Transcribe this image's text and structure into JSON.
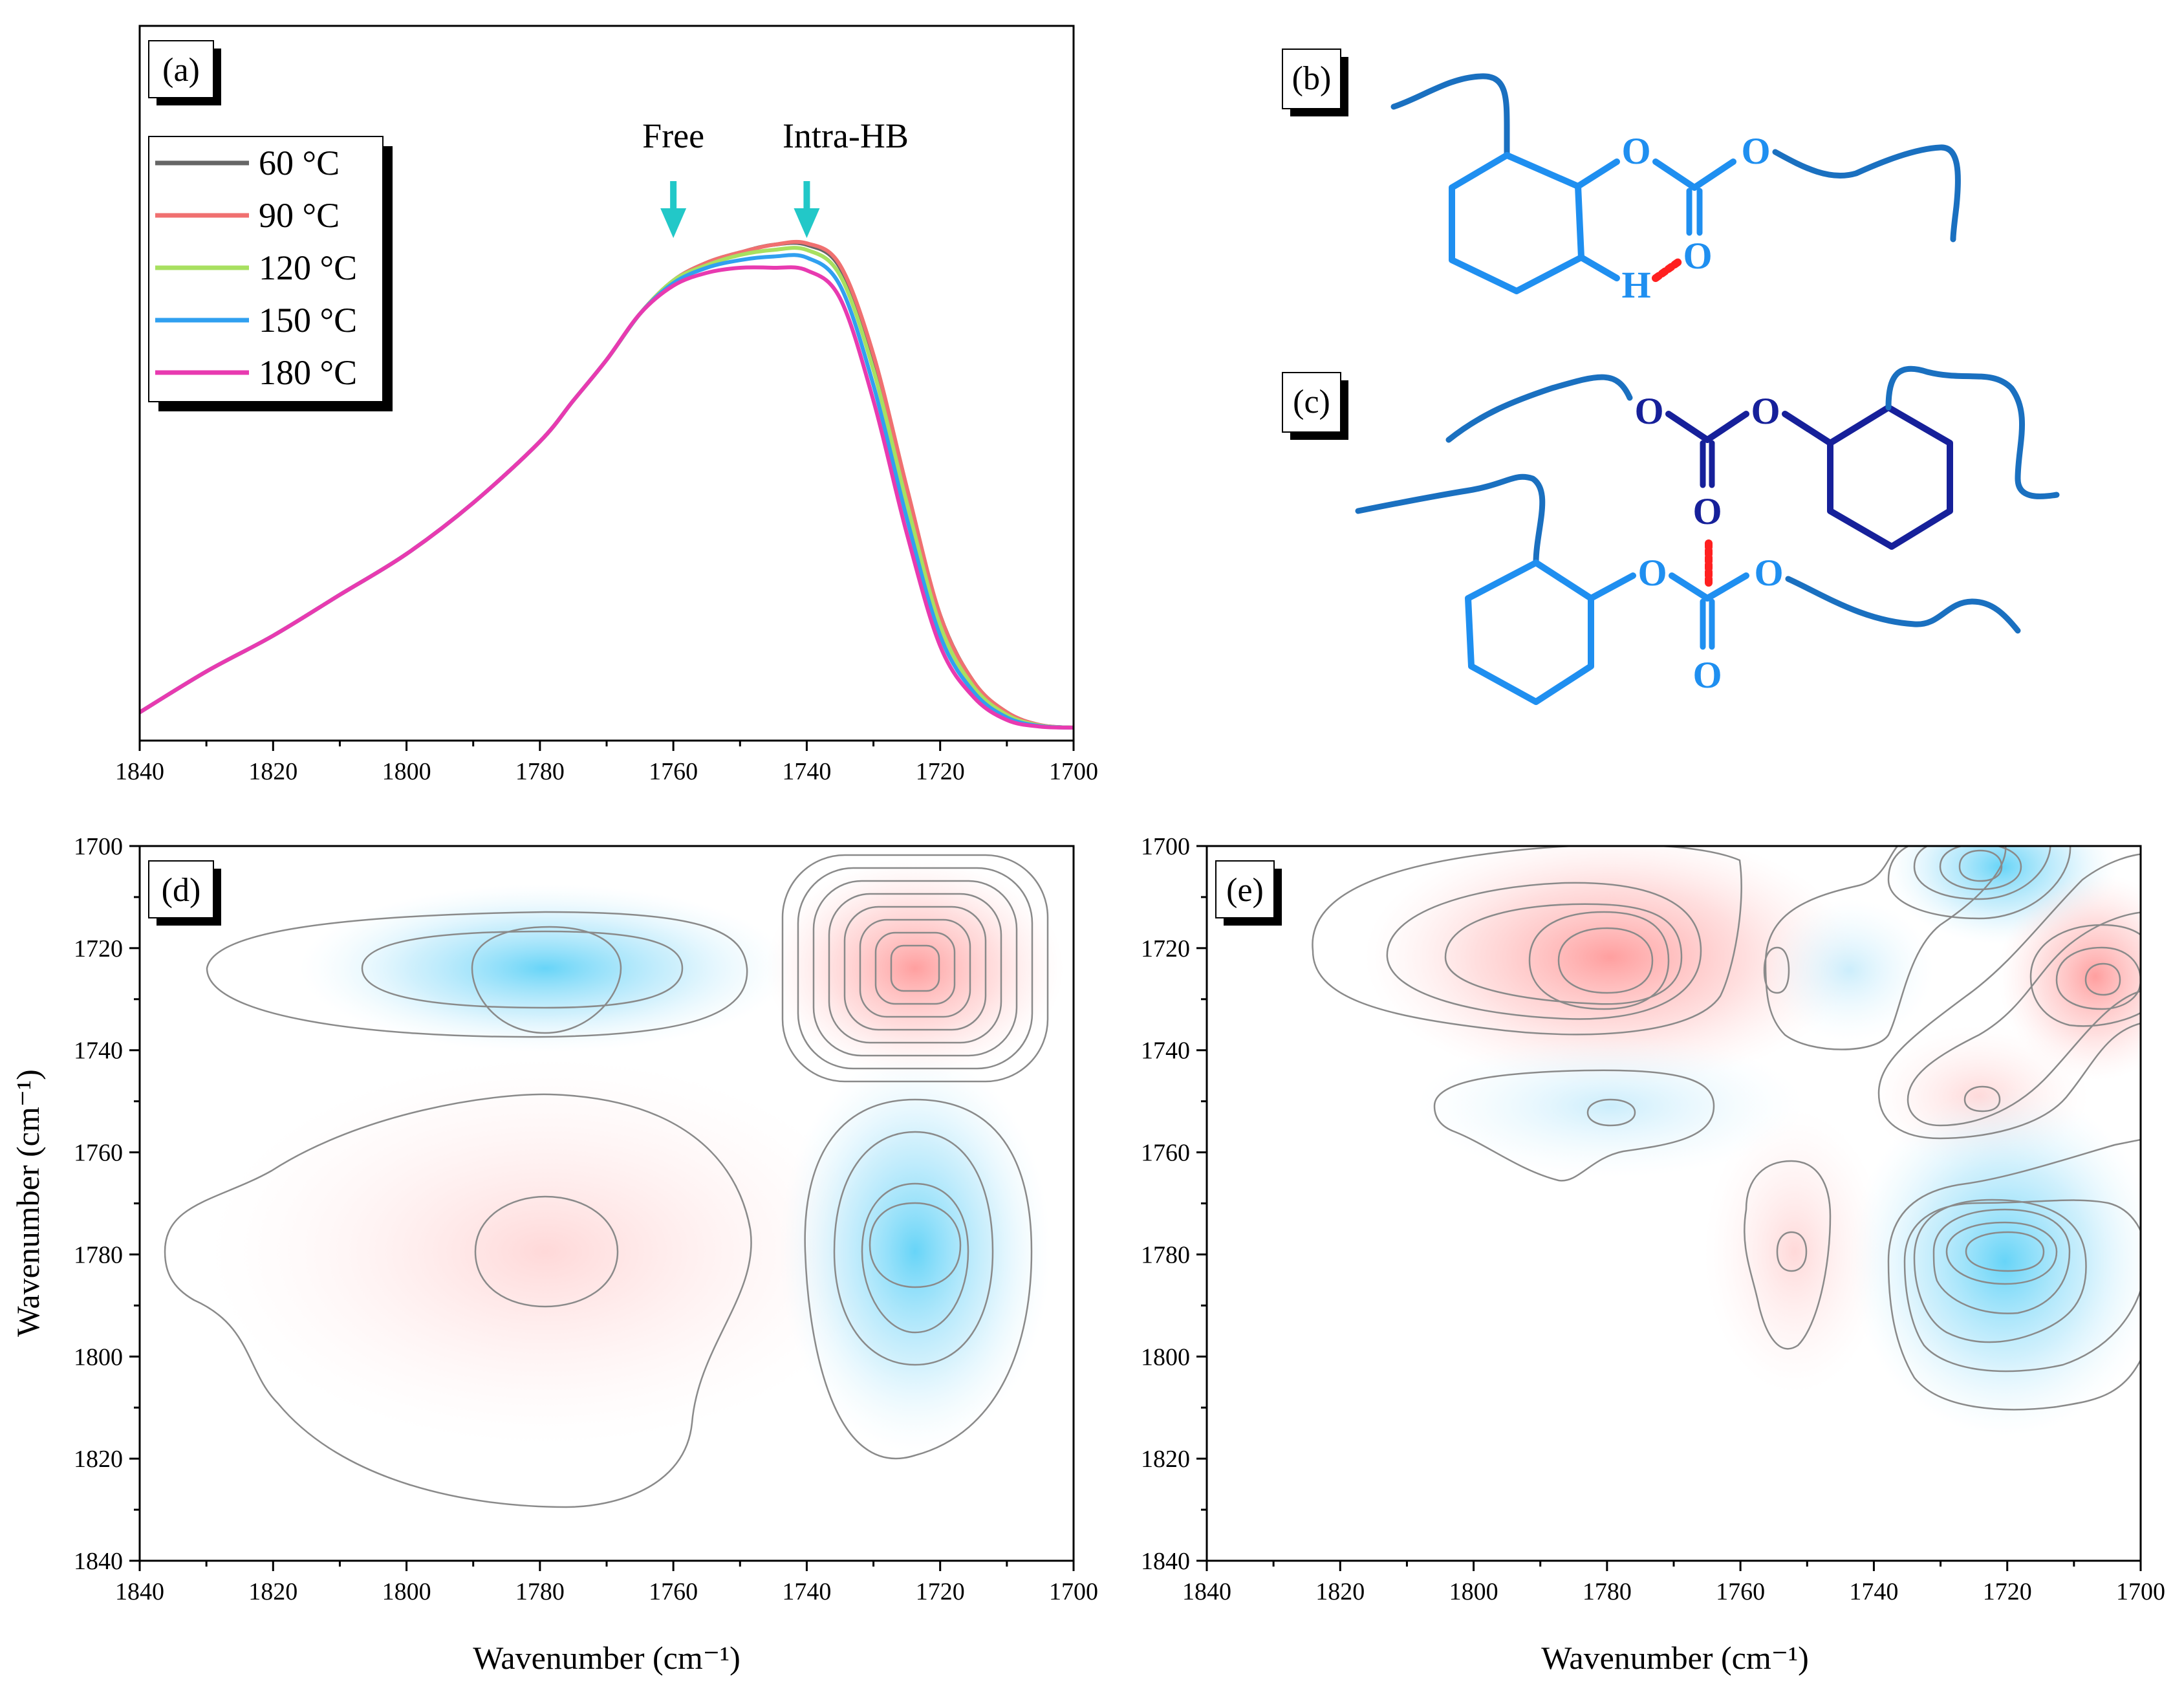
{
  "chart_data": [
    {
      "type": "line",
      "panel": "(a)",
      "xlabel": "",
      "ylabel": "",
      "xlim": [
        1840,
        1700
      ],
      "xticks": [
        1840,
        1820,
        1800,
        1780,
        1760,
        1740,
        1720,
        1700
      ],
      "x": [
        1840,
        1830,
        1820,
        1810,
        1800,
        1790,
        1780,
        1775,
        1770,
        1765,
        1760,
        1755,
        1750,
        1745,
        1740,
        1735,
        1730,
        1725,
        1720,
        1715,
        1710,
        1705,
        1700
      ],
      "series": [
        {
          "name": "60 °C",
          "color": "#666666",
          "values": [
            0.03,
            0.11,
            0.18,
            0.26,
            0.34,
            0.44,
            0.56,
            0.64,
            0.72,
            0.81,
            0.875,
            0.91,
            0.93,
            0.945,
            0.945,
            0.9,
            0.72,
            0.46,
            0.22,
            0.09,
            0.03,
            0.005,
            0.0
          ]
        },
        {
          "name": "90 °C",
          "color": "#f07070",
          "values": [
            0.03,
            0.11,
            0.18,
            0.26,
            0.34,
            0.44,
            0.56,
            0.64,
            0.72,
            0.81,
            0.875,
            0.91,
            0.93,
            0.945,
            0.948,
            0.905,
            0.73,
            0.47,
            0.22,
            0.09,
            0.03,
            0.005,
            0.0
          ]
        },
        {
          "name": "120 °C",
          "color": "#a8e060",
          "values": [
            0.03,
            0.11,
            0.18,
            0.26,
            0.34,
            0.44,
            0.56,
            0.64,
            0.72,
            0.81,
            0.875,
            0.905,
            0.925,
            0.935,
            0.935,
            0.885,
            0.7,
            0.44,
            0.2,
            0.08,
            0.025,
            0.004,
            0.0
          ]
        },
        {
          "name": "150 °C",
          "color": "#30a0f0",
          "values": [
            0.03,
            0.11,
            0.18,
            0.26,
            0.34,
            0.44,
            0.56,
            0.64,
            0.72,
            0.81,
            0.87,
            0.9,
            0.915,
            0.922,
            0.92,
            0.865,
            0.67,
            0.41,
            0.18,
            0.07,
            0.02,
            0.003,
            0.0
          ]
        },
        {
          "name": "180 °C",
          "color": "#e83ab0",
          "values": [
            0.03,
            0.11,
            0.18,
            0.26,
            0.34,
            0.44,
            0.56,
            0.64,
            0.72,
            0.81,
            0.865,
            0.89,
            0.9,
            0.9,
            0.895,
            0.84,
            0.64,
            0.38,
            0.16,
            0.06,
            0.015,
            0.002,
            0.0
          ]
        }
      ],
      "annotations": [
        {
          "text": "Free",
          "x": 1760,
          "arrow_color": "#22c8c8"
        },
        {
          "text": "Intra-HB",
          "x": 1740,
          "arrow_color": "#22c8c8"
        }
      ]
    },
    {
      "type": "heatmap",
      "panel": "(d)",
      "description_kind": "synchronous 2D correlation contour",
      "xlabel": "Wavenumber (cm⁻¹)",
      "ylabel": "Wavenumber (cm⁻¹)",
      "xlim": [
        1840,
        1700
      ],
      "ylim": [
        1700,
        1840
      ],
      "xticks": [
        1840,
        1820,
        1800,
        1780,
        1760,
        1740,
        1720,
        1700
      ],
      "yticks": [
        1700,
        1720,
        1740,
        1760,
        1780,
        1800,
        1820,
        1840
      ],
      "peaks": [
        {
          "x": 1779,
          "y": 1724,
          "sign": "negative"
        },
        {
          "x": 1724,
          "y": 1724,
          "sign": "positive"
        },
        {
          "x": 1779,
          "y": 1779,
          "sign": "positive"
        },
        {
          "x": 1724,
          "y": 1779,
          "sign": "negative"
        }
      ]
    },
    {
      "type": "heatmap",
      "panel": "(e)",
      "description_kind": "asynchronous 2D correlation contour",
      "xlabel": "Wavenumber (cm⁻¹)",
      "ylabel": "Wavenumber (cm⁻¹)",
      "xlim": [
        1840,
        1700
      ],
      "ylim": [
        1700,
        1840
      ],
      "xticks": [
        1840,
        1820,
        1800,
        1780,
        1760,
        1740,
        1720,
        1700
      ],
      "yticks": [
        1700,
        1720,
        1740,
        1760,
        1780,
        1800,
        1820,
        1840
      ],
      "peaks": [
        {
          "x": 1779,
          "y": 1720,
          "sign": "positive"
        },
        {
          "x": 1724,
          "y": 1705,
          "sign": "negative"
        },
        {
          "x": 1750,
          "y": 1725,
          "sign": "negative"
        },
        {
          "x": 1706,
          "y": 1725,
          "sign": "positive"
        },
        {
          "x": 1726,
          "y": 1750,
          "sign": "positive"
        },
        {
          "x": 1779,
          "y": 1752,
          "sign": "negative"
        },
        {
          "x": 1752,
          "y": 1779,
          "sign": "positive"
        },
        {
          "x": 1720,
          "y": 1780,
          "sign": "negative"
        }
      ]
    }
  ],
  "panels": {
    "a": "(a)",
    "b": "(b)",
    "c": "(c)",
    "d": "(d)",
    "e": "(e)"
  },
  "axis_titles": {
    "d_x": "Wavenumber (cm⁻¹)",
    "d_y": "Wavenumber (cm⁻¹)",
    "e_x": "Wavenumber (cm⁻¹)"
  },
  "structures": {
    "b_atoms": {
      "o1": "O",
      "o2": "O",
      "o3": "O",
      "h": "H"
    },
    "c_atoms": {
      "o1": "O",
      "o2": "O",
      "o3": "O",
      "o4": "O",
      "o5": "O",
      "o6": "O"
    }
  },
  "colors": {
    "positive": "#ff9a9a",
    "negative": "#4cc8f5",
    "struct_light": "#1f8ff0",
    "struct_dark": "#16209a",
    "struct_wave": "#1a70c0",
    "hbond": "#ff2020"
  }
}
